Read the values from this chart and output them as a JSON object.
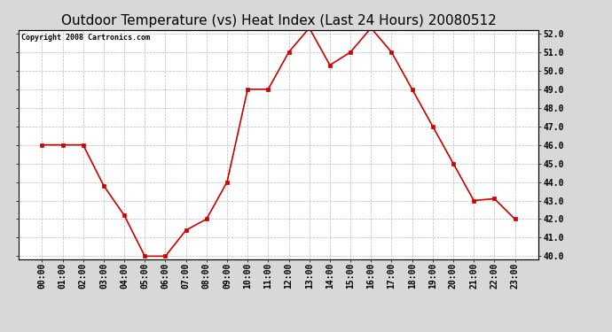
{
  "title": "Outdoor Temperature (vs) Heat Index (Last 24 Hours) 20080512",
  "copyright_text": "Copyright 2008 Cartronics.com",
  "x_labels": [
    "00:00",
    "01:00",
    "02:00",
    "03:00",
    "04:00",
    "05:00",
    "06:00",
    "07:00",
    "08:00",
    "09:00",
    "10:00",
    "11:00",
    "12:00",
    "13:00",
    "14:00",
    "15:00",
    "16:00",
    "17:00",
    "18:00",
    "19:00",
    "20:00",
    "21:00",
    "22:00",
    "23:00"
  ],
  "y_values": [
    46.0,
    46.0,
    46.0,
    43.8,
    42.2,
    40.0,
    40.0,
    41.4,
    42.0,
    44.0,
    49.0,
    49.0,
    51.0,
    52.3,
    50.3,
    51.0,
    52.3,
    51.0,
    49.0,
    47.0,
    45.0,
    43.0,
    43.1,
    42.0
  ],
  "line_color": "#cc0000",
  "marker": "s",
  "marker_size": 2.5,
  "ylim_min": 40.0,
  "ylim_max": 52.0,
  "ytick_step": 1.0,
  "background_color": "#d8d8d8",
  "plot_background": "#ffffff",
  "grid_color": "#bbbbbb",
  "grid_style": "--",
  "title_fontsize": 11,
  "title_fontfamily": "DejaVu Sans",
  "copyright_fontsize": 6,
  "tick_fontsize": 7,
  "ytick_fontweight": "bold"
}
